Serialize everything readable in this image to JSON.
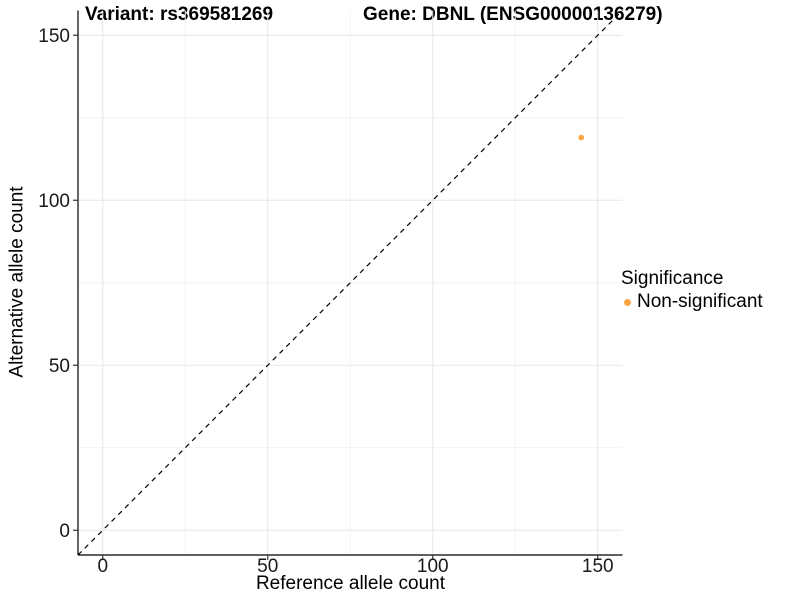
{
  "titles": {
    "left": "Variant: rs369581269",
    "right": "Gene: DBNL (ENSG00000136279)"
  },
  "axes": {
    "x_label": "Reference allele count",
    "y_label": "Alternative allele count"
  },
  "legend": {
    "title": "Significance",
    "entries": [
      {
        "label": "Non-significant",
        "color": "#F9A543"
      }
    ]
  },
  "colors": {
    "background": "#ffffff",
    "grid_major": "#e7e7e7",
    "grid_minor": "#f2f2f2",
    "axis_line": "#000000",
    "tick_mark": "#333333",
    "tick_label": "#1a1a1a",
    "abline": "#000000",
    "point": "#F9A543"
  },
  "chart_data": {
    "type": "scatter",
    "title": "Variant: rs369581269    Gene: DBNL (ENSG00000136279)",
    "xlabel": "Reference allele count",
    "ylabel": "Alternative allele count",
    "xlim": [
      -7.5,
      157.5
    ],
    "ylim": [
      -7.5,
      157.5
    ],
    "xticks": [
      0,
      50,
      100,
      150
    ],
    "yticks": [
      0,
      50,
      100,
      150
    ],
    "x_minor_ticks": [
      25,
      75,
      125
    ],
    "y_minor_ticks": [
      25,
      75,
      125
    ],
    "grid": "major and minor, light grey on white",
    "legend_position": "right-middle",
    "series": [
      {
        "name": "Non-significant",
        "color": "#F9A543",
        "points": [
          {
            "x": 145,
            "y": 119
          }
        ]
      }
    ],
    "annotations": [
      {
        "type": "abline",
        "slope": 1,
        "intercept": 0,
        "style": "dashed",
        "color": "#000000",
        "note": "identity line y = x"
      }
    ]
  }
}
